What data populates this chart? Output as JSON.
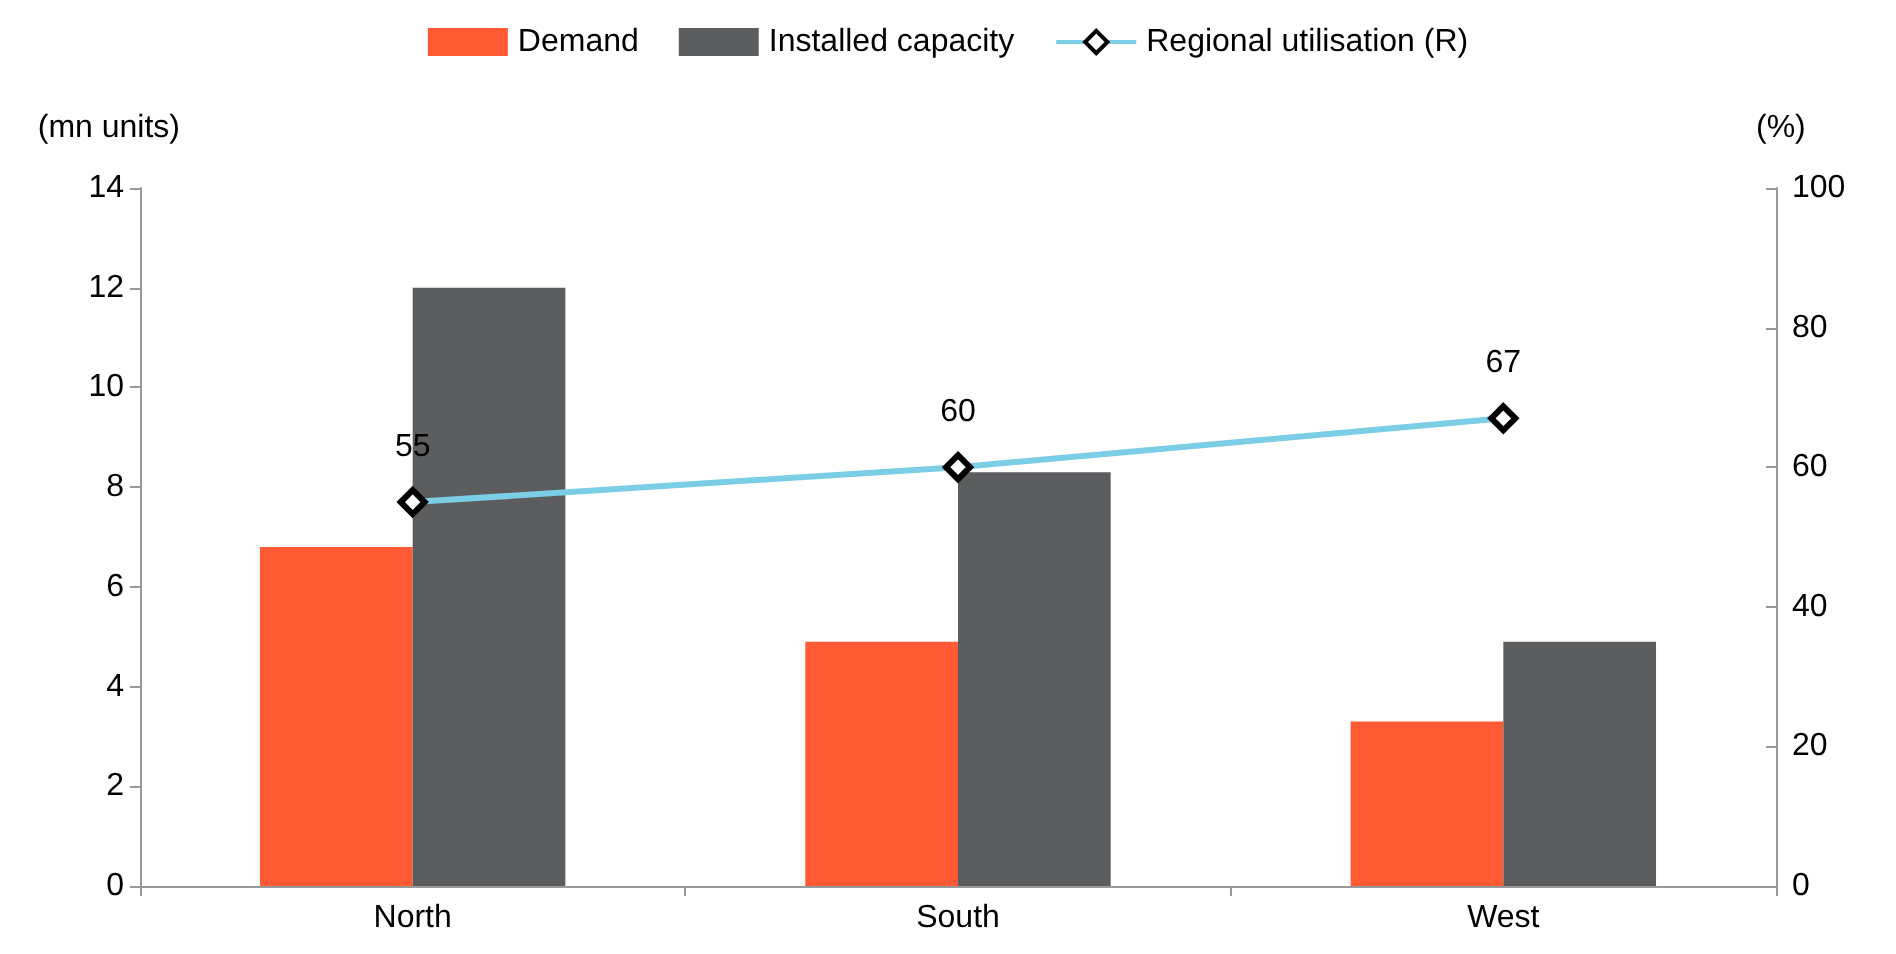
{
  "chart_data": {
    "type": "bar",
    "ylabel": "(mn units)",
    "y2label": "(%)",
    "categories": [
      "North",
      "South",
      "West"
    ],
    "series": [
      {
        "name": "Demand",
        "color": "#ff5a33",
        "values": [
          6.8,
          4.9,
          3.3
        ]
      },
      {
        "name": "Installed capacity",
        "color": "#5c5d5f",
        "values": [
          12,
          8.3,
          4.9
        ]
      },
      {
        "name": "Regional utilisation (R)",
        "type": "line",
        "axis": "y2",
        "color": "#7ccde6",
        "values": [
          55,
          60,
          67
        ],
        "value_labels": [
          "55",
          "60",
          "67"
        ]
      }
    ],
    "ylim": [
      0,
      14
    ],
    "yticks": [
      0,
      2,
      4,
      6,
      8,
      10,
      12,
      14
    ],
    "y2lim": [
      0,
      100
    ],
    "y2ticks": [
      0,
      20,
      40,
      60,
      80,
      100
    ],
    "grid": false,
    "legend": "top",
    "marker": "diamond"
  }
}
